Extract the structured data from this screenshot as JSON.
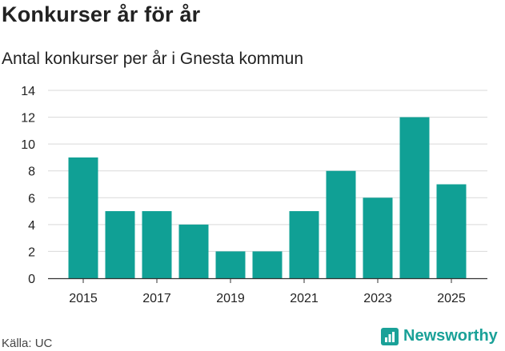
{
  "header": {
    "title": "Konkurser år för år",
    "subtitle": "Antal konkurser per år i Gnesta kommun"
  },
  "footer": {
    "source": "Källa: UC",
    "brand": "Newsworthy"
  },
  "colors": {
    "bar": "#10a095",
    "grid": "#d9d9d9",
    "axis": "#333333",
    "brand": "#1aa198"
  },
  "chart_data": {
    "type": "bar",
    "title": "Konkurser år för år",
    "subtitle": "Antal konkurser per år i Gnesta kommun",
    "xlabel": "",
    "ylabel": "",
    "categories": [
      "2015",
      "2016",
      "2017",
      "2018",
      "2019",
      "2020",
      "2021",
      "2022",
      "2023",
      "2024",
      "2025"
    ],
    "values": [
      9,
      5,
      5,
      4,
      2,
      2,
      5,
      8,
      6,
      12,
      7
    ],
    "x_tick_labels": [
      "2015",
      "2017",
      "2019",
      "2021",
      "2023",
      "2025"
    ],
    "y_ticks": [
      0,
      2,
      4,
      6,
      8,
      10,
      12,
      14
    ],
    "ylim": [
      0,
      14
    ],
    "grid": true,
    "legend": "none"
  }
}
